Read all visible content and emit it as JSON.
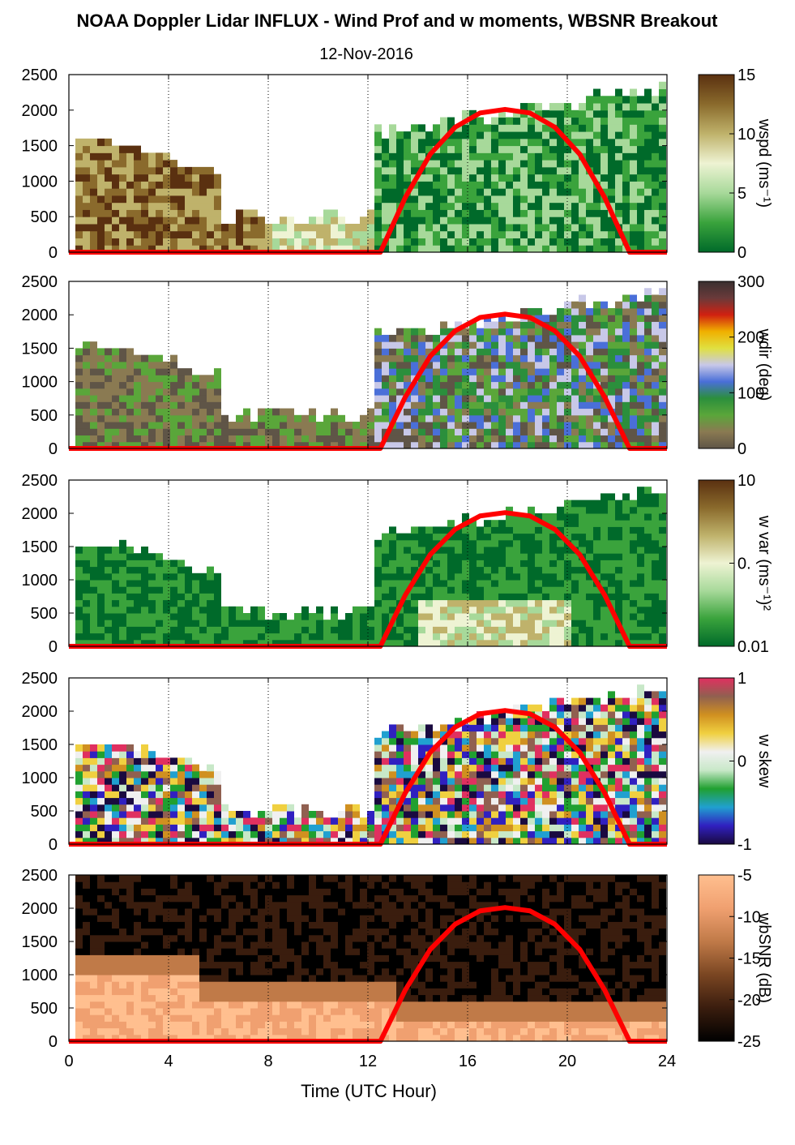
{
  "title": "NOAA Doppler Lidar INFLUX - Wind Prof and w moments, WBSNR Breakout",
  "subtitle": "12-Nov-2016",
  "xlabel": "Time (UTC Hour)",
  "chart_data": {
    "type": "heatmap",
    "x_ticks": [
      0,
      4,
      8,
      12,
      16,
      20,
      24
    ],
    "xlim": [
      0,
      24
    ],
    "y_ticks": [
      0,
      500,
      1000,
      1500,
      2000,
      2500
    ],
    "ylim": [
      0,
      2500
    ],
    "overlay_curve": {
      "color": "#ff0000",
      "points": [
        [
          0,
          0
        ],
        [
          12.5,
          0
        ],
        [
          13.5,
          770
        ],
        [
          14.5,
          1380
        ],
        [
          15.5,
          1760
        ],
        [
          16.5,
          1960
        ],
        [
          17.5,
          2010
        ],
        [
          18.5,
          1960
        ],
        [
          19.5,
          1760
        ],
        [
          20.5,
          1380
        ],
        [
          21.5,
          770
        ],
        [
          22.5,
          0
        ],
        [
          24,
          0
        ]
      ]
    },
    "panels": [
      {
        "variable": "wspd",
        "colorbar_label": "wspd (ms⁻¹)",
        "colorbar_ticks": [
          "15",
          "10",
          "5",
          "0"
        ],
        "colorbar_colors": [
          "#006a2a",
          "#3aa33c",
          "#a7d99a",
          "#eef3d3",
          "#bfb26b",
          "#8a6a2c",
          "#5a3010"
        ]
      },
      {
        "variable": "wdir",
        "colorbar_label": "wdir (deg)",
        "colorbar_ticks": [
          "300",
          "200",
          "100",
          "0"
        ],
        "colorbar_colors": [
          "#5f5547",
          "#8a7a52",
          "#5aa63a",
          "#2b8f3c",
          "#4a6fd8",
          "#c8c8e8",
          "#e0e040",
          "#f0b000",
          "#d02010",
          "#6a3a3a",
          "#3a3030"
        ]
      },
      {
        "variable": "w var",
        "colorbar_label": "w var (ms⁻¹)²",
        "colorbar_ticks": [
          "10",
          "0.",
          "0.01"
        ],
        "colorbar_colors": [
          "#006a2a",
          "#3aa33c",
          "#a7d99a",
          "#eef3d3",
          "#bfb26b",
          "#8a6a2c",
          "#5a3010"
        ]
      },
      {
        "variable": "w skew",
        "colorbar_label": "w skew",
        "colorbar_ticks": [
          "1",
          "0",
          "-1"
        ],
        "colorbar_colors": [
          "#1a0a40",
          "#3020c0",
          "#20a0d0",
          "#20a030",
          "#c8e8c8",
          "#f0f0f0",
          "#f0d040",
          "#d09020",
          "#906050",
          "#e03060"
        ]
      },
      {
        "variable": "wbSNR",
        "colorbar_label": "wbSNR (dB)",
        "colorbar_ticks": [
          "-5",
          "-10",
          "-15",
          "-20",
          "-25"
        ],
        "colorbar_colors": [
          "#000000",
          "#3a1d0e",
          "#7a4622",
          "#c07a48",
          "#f0a070",
          "#ffbf8f"
        ]
      }
    ]
  }
}
